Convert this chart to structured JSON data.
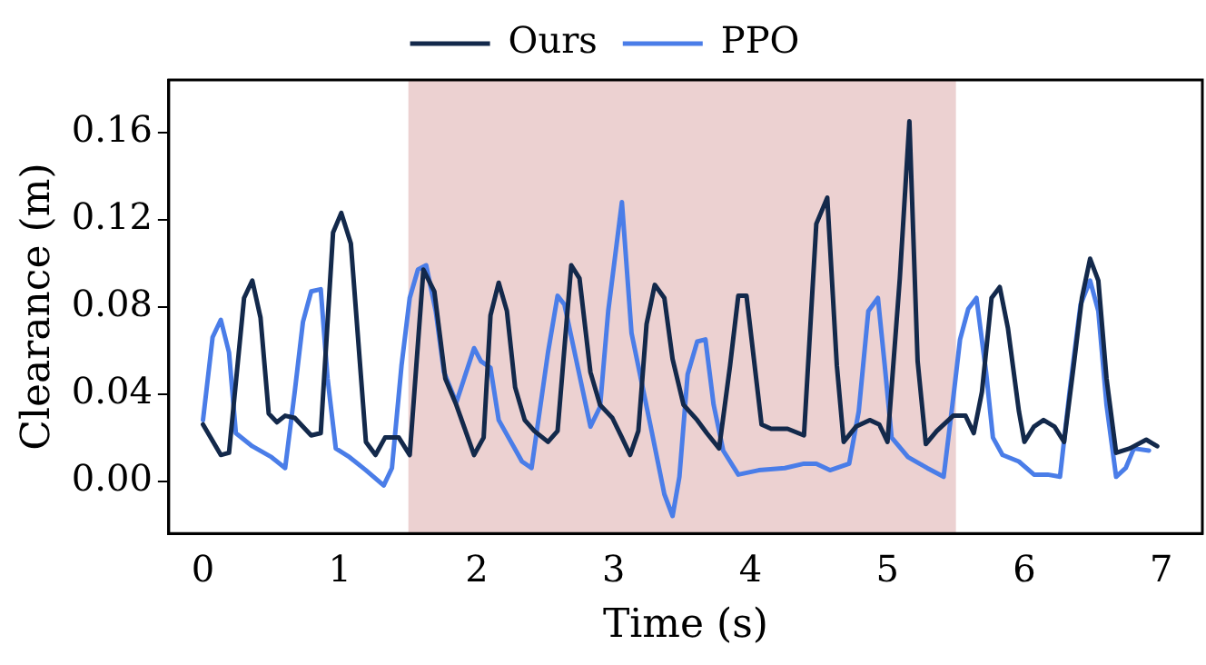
{
  "chart_data": {
    "type": "line",
    "xlabel": "Time (s)",
    "ylabel": "Clearance (m)",
    "legend": "top",
    "grid": false,
    "marker": "none",
    "line_style": "solid",
    "xlim": [
      -0.25,
      7.3
    ],
    "ylim": [
      -0.024,
      0.184
    ],
    "xticks": [
      0,
      1,
      2,
      3,
      4,
      5,
      6,
      7
    ],
    "yticks": [
      {
        "value": 0,
        "label": "0.00"
      },
      {
        "value": 0.04,
        "label": "0.04"
      },
      {
        "value": 0.08,
        "label": "0.08"
      },
      {
        "value": 0.12,
        "label": "0.12"
      },
      {
        "value": 0.16,
        "label": "0.16"
      }
    ],
    "bands": [
      {
        "axis": "x",
        "from": 1.5,
        "to": 5.5,
        "color": "#ecd1d1"
      }
    ],
    "series": [
      {
        "name": "Ours",
        "color": "#13294b",
        "x": [
          0,
          0.13,
          0.19,
          0.3,
          0.36,
          0.42,
          0.48,
          0.54,
          0.6,
          0.67,
          0.79,
          0.86,
          0.95,
          1.01,
          1.08,
          1.19,
          1.26,
          1.33,
          1.43,
          1.51,
          1.61,
          1.69,
          1.77,
          1.85,
          1.98,
          2.05,
          2.1,
          2.16,
          2.22,
          2.28,
          2.35,
          2.42,
          2.52,
          2.59,
          2.69,
          2.75,
          2.83,
          2.9,
          2.99,
          3.06,
          3.12,
          3.18,
          3.24,
          3.3,
          3.37,
          3.43,
          3.51,
          3.61,
          3.68,
          3.77,
          3.85,
          3.91,
          3.97,
          4.08,
          4.15,
          4.27,
          4.39,
          4.48,
          4.56,
          4.63,
          4.68,
          4.77,
          4.87,
          4.94,
          5,
          5.09,
          5.16,
          5.22,
          5.28,
          5.36,
          5.48,
          5.57,
          5.63,
          5.69,
          5.76,
          5.82,
          5.88,
          5.96,
          6,
          6.07,
          6.14,
          6.22,
          6.29,
          6.36,
          6.42,
          6.48,
          6.54,
          6.6,
          6.67,
          6.77,
          6.89,
          6.97
        ],
        "values": [
          0.026,
          0.012,
          0.013,
          0.084,
          0.092,
          0.075,
          0.031,
          0.027,
          0.03,
          0.029,
          0.021,
          0.022,
          0.114,
          0.123,
          0.109,
          0.018,
          0.012,
          0.02,
          0.02,
          0.012,
          0.097,
          0.087,
          0.047,
          0.035,
          0.012,
          0.02,
          0.076,
          0.091,
          0.078,
          0.043,
          0.028,
          0.023,
          0.018,
          0.023,
          0.099,
          0.093,
          0.05,
          0.035,
          0.029,
          0.02,
          0.012,
          0.023,
          0.072,
          0.09,
          0.084,
          0.056,
          0.035,
          0.028,
          0.022,
          0.015,
          0.053,
          0.085,
          0.085,
          0.026,
          0.024,
          0.024,
          0.021,
          0.118,
          0.13,
          0.053,
          0.018,
          0.025,
          0.028,
          0.026,
          0.018,
          0.093,
          0.165,
          0.055,
          0.017,
          0.023,
          0.03,
          0.03,
          0.022,
          0.041,
          0.084,
          0.089,
          0.07,
          0.032,
          0.018,
          0.025,
          0.028,
          0.025,
          0.018,
          0.053,
          0.084,
          0.102,
          0.092,
          0.047,
          0.013,
          0.015,
          0.019,
          0.016
        ]
      },
      {
        "name": "PPO",
        "color": "#4a7de8",
        "x": [
          0,
          0.07,
          0.13,
          0.19,
          0.24,
          0.36,
          0.5,
          0.6,
          0.67,
          0.73,
          0.79,
          0.86,
          0.91,
          0.97,
          1.07,
          1.19,
          1.32,
          1.38,
          1.45,
          1.51,
          1.57,
          1.63,
          1.7,
          1.76,
          1.85,
          1.98,
          2.03,
          2.1,
          2.16,
          2.33,
          2.4,
          2.52,
          2.59,
          2.64,
          2.83,
          2.9,
          2.96,
          3.06,
          3.13,
          3.28,
          3.37,
          3.43,
          3.48,
          3.54,
          3.61,
          3.67,
          3.73,
          3.8,
          3.91,
          4.06,
          4.25,
          4.39,
          4.48,
          4.58,
          4.72,
          4.79,
          4.86,
          4.93,
          4.98,
          5.03,
          5.15,
          5.29,
          5.41,
          5.48,
          5.53,
          5.59,
          5.65,
          5.72,
          5.77,
          5.84,
          5.96,
          6.07,
          6.17,
          6.26,
          6.33,
          6.41,
          6.48,
          6.54,
          6.6,
          6.67,
          6.74,
          6.8,
          6.91
        ],
        "values": [
          0.028,
          0.066,
          0.074,
          0.059,
          0.022,
          0.016,
          0.011,
          0.006,
          0.041,
          0.073,
          0.087,
          0.088,
          0.047,
          0.015,
          0.011,
          0.005,
          -0.002,
          0.006,
          0.053,
          0.084,
          0.097,
          0.099,
          0.078,
          0.05,
          0.036,
          0.061,
          0.055,
          0.052,
          0.028,
          0.009,
          0.006,
          0.059,
          0.085,
          0.081,
          0.025,
          0.034,
          0.078,
          0.128,
          0.068,
          0.022,
          -0.006,
          -0.016,
          0.002,
          0.049,
          0.064,
          0.065,
          0.035,
          0.014,
          0.003,
          0.005,
          0.006,
          0.008,
          0.008,
          0.005,
          0.008,
          0.032,
          0.078,
          0.084,
          0.053,
          0.02,
          0.011,
          0.006,
          0.002,
          0.038,
          0.065,
          0.079,
          0.084,
          0.05,
          0.02,
          0.012,
          0.009,
          0.003,
          0.003,
          0.002,
          0.041,
          0.081,
          0.092,
          0.078,
          0.035,
          0.002,
          0.006,
          0.015,
          0.014
        ]
      }
    ]
  }
}
